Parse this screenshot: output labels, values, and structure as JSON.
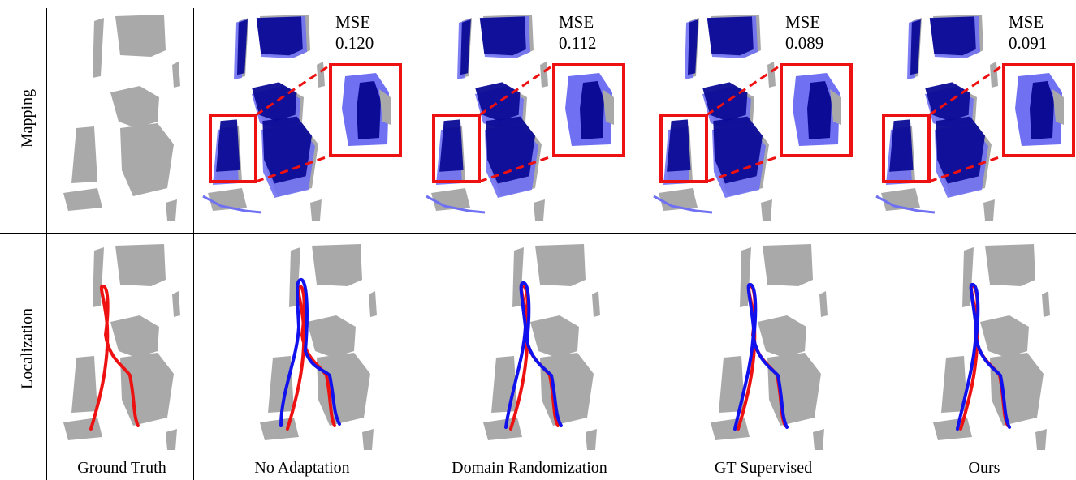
{
  "rows": {
    "mapping": "Mapping",
    "localization": "Localization"
  },
  "columns": [
    {
      "label": "Ground Truth"
    },
    {
      "label": "No Adaptation",
      "mse_title": "MSE",
      "mse_value": "0.120"
    },
    {
      "label": "Domain Randomization",
      "mse_title": "MSE",
      "mse_value": "0.112"
    },
    {
      "label": "GT Supervised",
      "mse_title": "MSE",
      "mse_value": "0.089"
    },
    {
      "label": "Ours",
      "mse_title": "MSE",
      "mse_value": "0.091"
    }
  ],
  "colors": {
    "map_gray": "#a9a9a9",
    "map_blue_dark": "#0b0b96",
    "map_blue_light": "#6f70f2",
    "zoom_box": "#ee1111",
    "traj_gt": "#ee1111",
    "traj_est": "#1111ee"
  }
}
